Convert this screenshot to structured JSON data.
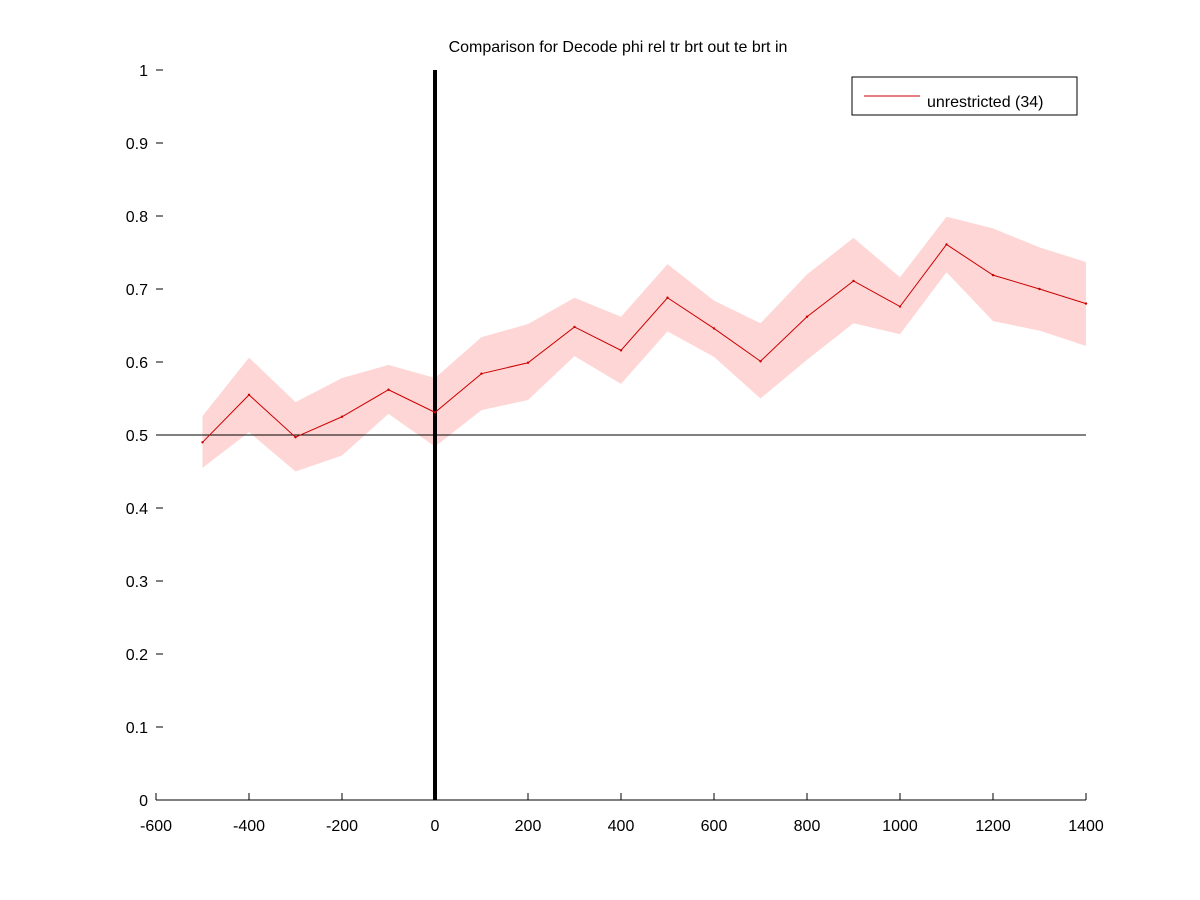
{
  "chart_data": {
    "type": "line",
    "title": "Comparison for Decode phi rel tr brt out te brt in",
    "xlabel": "",
    "ylabel": "",
    "xlim": [
      -600,
      1400
    ],
    "ylim": [
      0,
      1
    ],
    "x_ticks": [
      "-600",
      "-400",
      "-200",
      "0",
      "200",
      "400",
      "600",
      "800",
      "1000",
      "1200",
      "1400"
    ],
    "y_ticks": [
      "0",
      "0.1",
      "0.2",
      "0.3",
      "0.4",
      "0.5",
      "0.6",
      "0.7",
      "0.8",
      "0.9",
      "1"
    ],
    "grid": false,
    "legend_position": "top-right",
    "reference_lines": {
      "horizontal_y": 0.5,
      "vertical_x": 0
    },
    "series": [
      {
        "name": "unrestricted (34)",
        "color": "#cc0000",
        "band_color": "#ffd6d6",
        "x": [
          -500,
          -400,
          -300,
          -200,
          -100,
          0,
          100,
          200,
          300,
          400,
          500,
          600,
          700,
          800,
          900,
          1000,
          1100,
          1200,
          1300,
          1400
        ],
        "values": [
          0.49,
          0.555,
          0.497,
          0.525,
          0.562,
          0.531,
          0.584,
          0.599,
          0.648,
          0.616,
          0.688,
          0.646,
          0.601,
          0.662,
          0.711,
          0.676,
          0.761,
          0.719,
          0.7,
          0.68
        ],
        "upper": [
          0.526,
          0.606,
          0.545,
          0.578,
          0.596,
          0.578,
          0.634,
          0.652,
          0.688,
          0.662,
          0.734,
          0.684,
          0.653,
          0.72,
          0.77,
          0.716,
          0.799,
          0.783,
          0.757,
          0.737
        ],
        "lower": [
          0.455,
          0.504,
          0.45,
          0.472,
          0.529,
          0.484,
          0.534,
          0.548,
          0.608,
          0.57,
          0.642,
          0.607,
          0.55,
          0.603,
          0.653,
          0.638,
          0.723,
          0.656,
          0.643,
          0.622
        ]
      }
    ]
  }
}
